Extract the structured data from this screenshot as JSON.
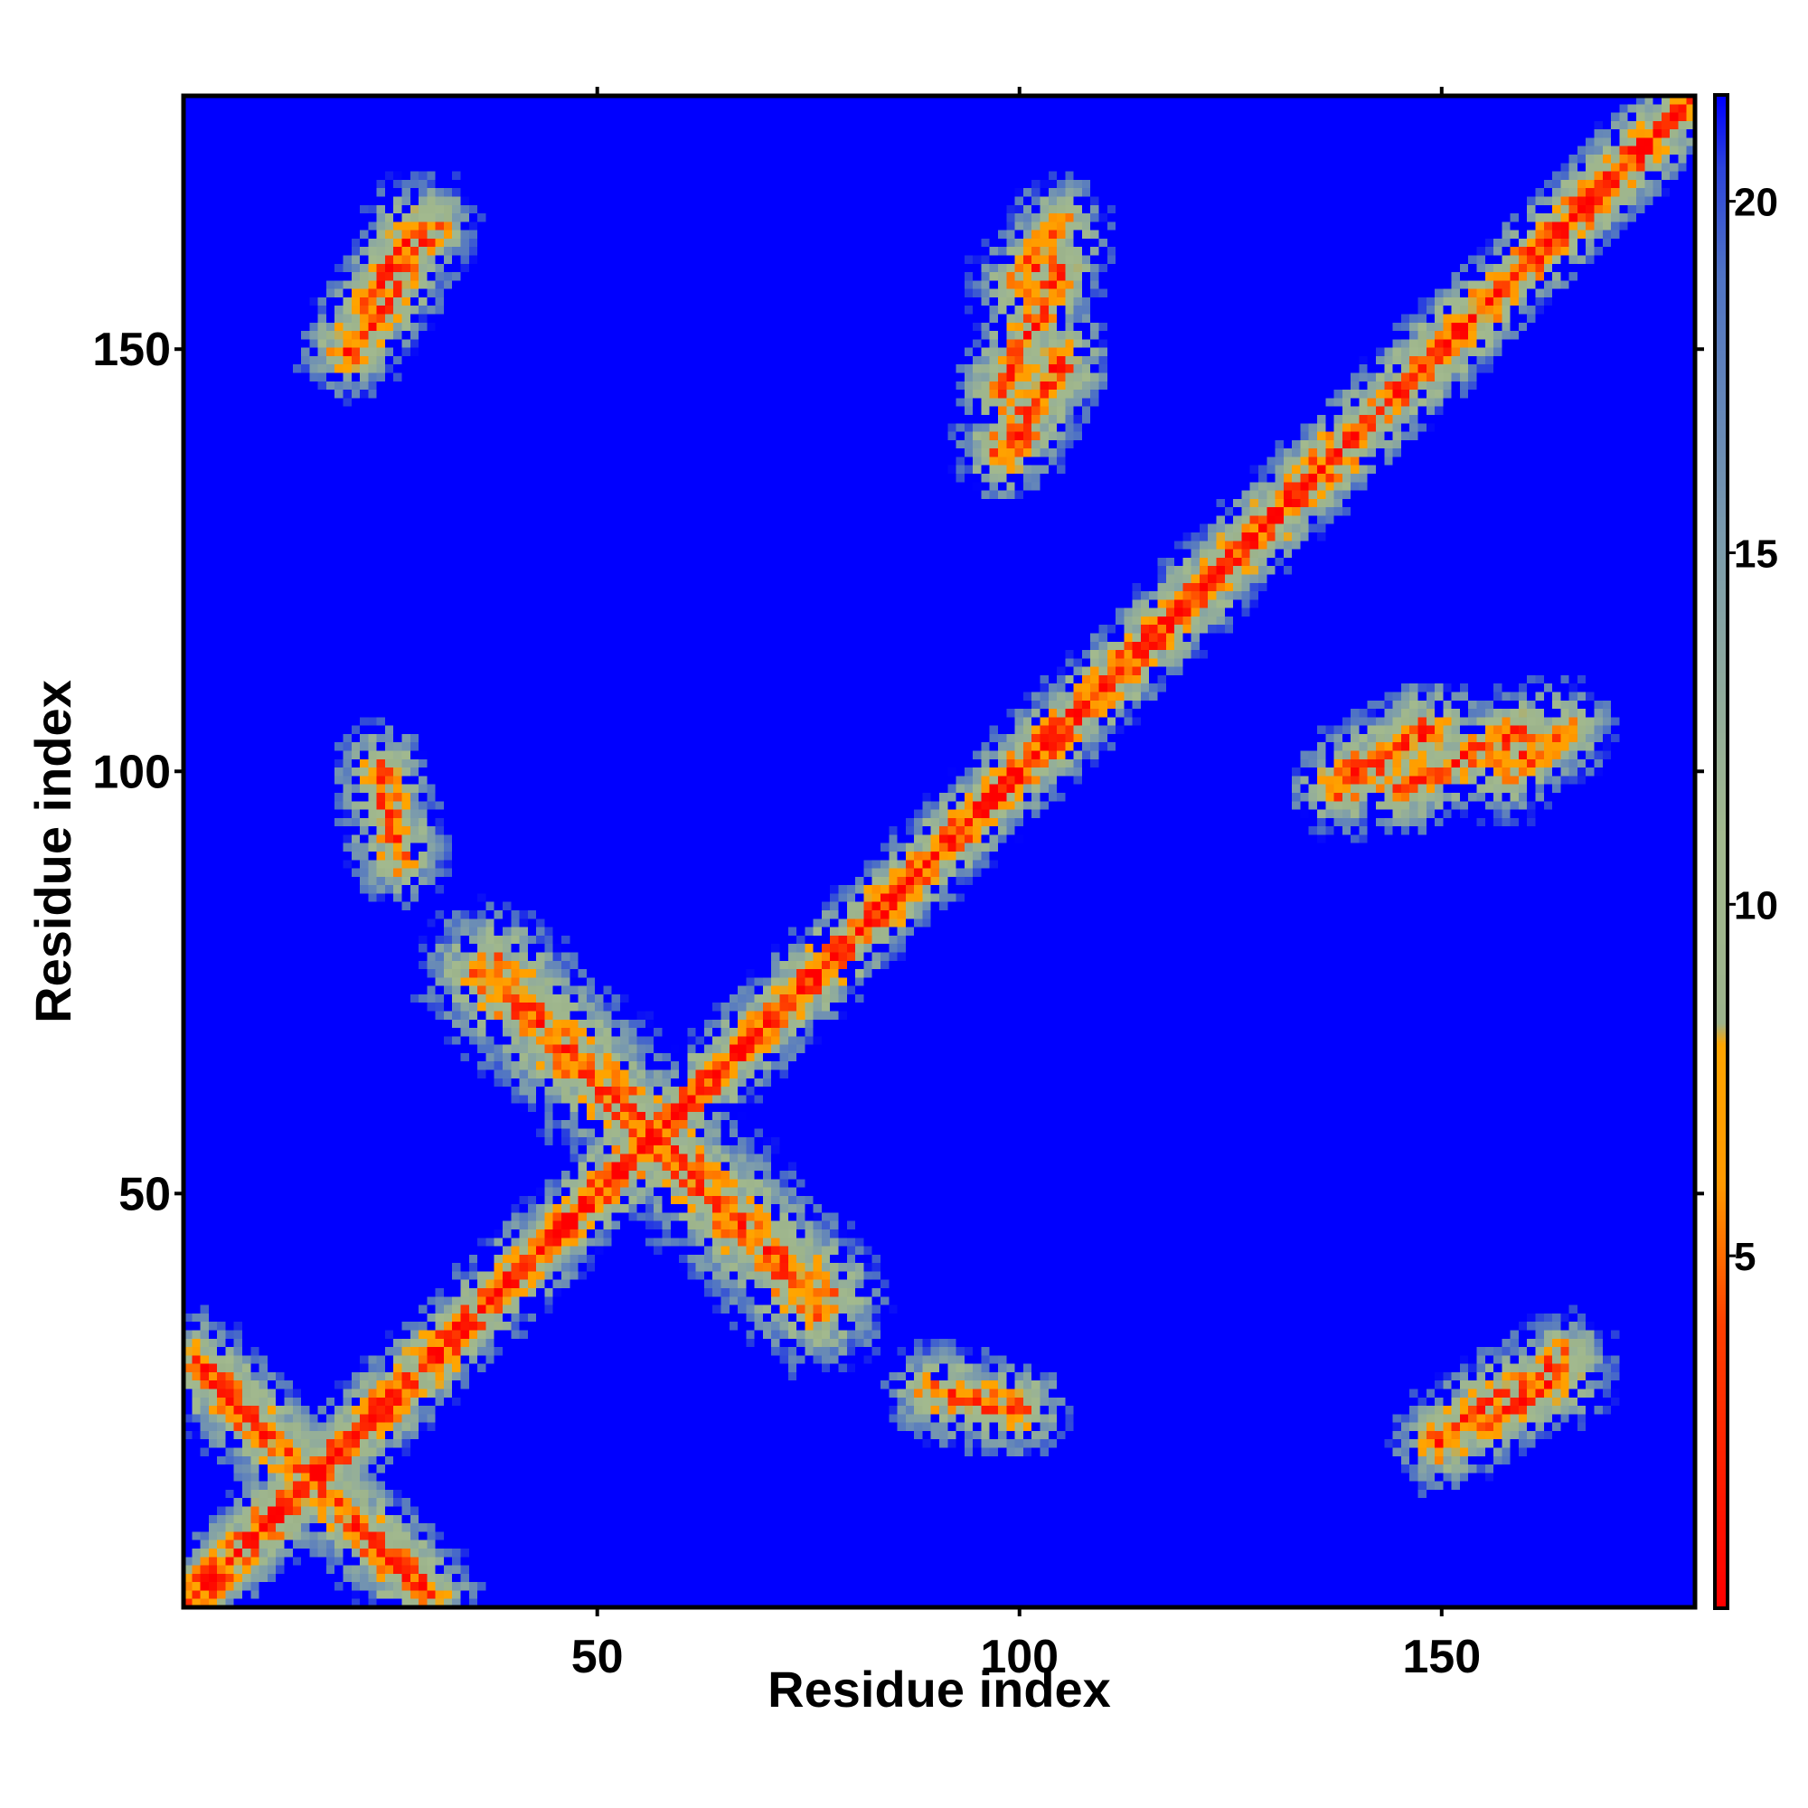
{
  "chart_data": {
    "type": "heatmap",
    "title": "",
    "xlabel": "Residue index",
    "ylabel": "Residue index",
    "n_residues": 180,
    "xlim": [
      1,
      180
    ],
    "ylim": [
      1,
      180
    ],
    "x_ticks": [
      {
        "value": 50,
        "label": "50"
      },
      {
        "value": 100,
        "label": "100"
      },
      {
        "value": 150,
        "label": "150"
      }
    ],
    "y_ticks": [
      {
        "value": 50,
        "label": "50"
      },
      {
        "value": 100,
        "label": "100"
      },
      {
        "value": 150,
        "label": "150"
      }
    ],
    "colorbar": {
      "range": [
        0,
        21.5
      ],
      "ticks": [
        {
          "value": 5,
          "label": "5"
        },
        {
          "value": 10,
          "label": "10"
        },
        {
          "value": 15,
          "label": "15"
        },
        {
          "value": 20,
          "label": "20"
        }
      ],
      "color_stops": [
        {
          "value": 0,
          "color": "#ff0000"
        },
        {
          "value": 4,
          "color": "#ff4000"
        },
        {
          "value": 6,
          "color": "#ff9900"
        },
        {
          "value": 8,
          "color": "#ffa500"
        },
        {
          "value": 8.3,
          "color": "#9cb38c"
        },
        {
          "value": 11,
          "color": "#a2b98e"
        },
        {
          "value": 15,
          "color": "#7d9dab"
        },
        {
          "value": 19,
          "color": "#4f73c4"
        },
        {
          "value": 20.5,
          "color": "#2c44dc"
        },
        {
          "value": 21.5,
          "color": "#0000ff"
        }
      ]
    },
    "description_values": "Symmetric residue-residue distance map (Angstrom). Distances near the diagonal are small (red/orange); values above ~21 saturate to blue.",
    "features": [
      {
        "kind": "diagonal",
        "width": 1
      },
      {
        "kind": "anti_parallel_sheet",
        "center": [
          54,
          54
        ],
        "from": [
          37,
          76
        ],
        "to": [
          76,
          37
        ]
      },
      {
        "kind": "contact",
        "from": [
          3,
          28
        ],
        "to": [
          30,
          2
        ]
      },
      {
        "kind": "contact",
        "from": [
          20,
          150
        ],
        "to": [
          28,
          165
        ]
      },
      {
        "kind": "contact",
        "from": [
          98,
          145
        ],
        "to": [
          105,
          160
        ]
      },
      {
        "kind": "contact",
        "from": [
          98,
          138
        ],
        "to": [
          105,
          150
        ]
      },
      {
        "kind": "contact",
        "from": [
          140,
          100
        ],
        "to": [
          148,
          105
        ]
      },
      {
        "kind": "contact",
        "from": [
          158,
          100
        ],
        "to": [
          165,
          105
        ]
      },
      {
        "kind": "contact",
        "from": [
          152,
          22
        ],
        "to": [
          165,
          30
        ]
      },
      {
        "kind": "contact",
        "from": [
          90,
          26
        ],
        "to": [
          100,
          24
        ]
      }
    ]
  }
}
